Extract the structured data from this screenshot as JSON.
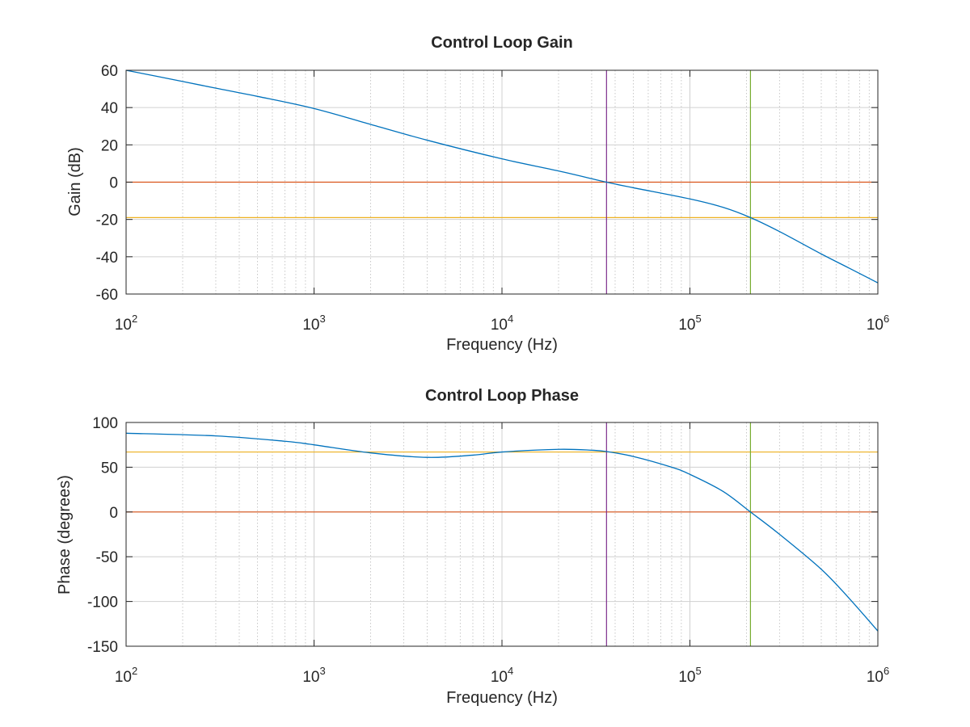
{
  "chart_data": [
    {
      "type": "line",
      "title": "Control Loop Gain",
      "xlabel": "Frequency (Hz)",
      "ylabel": "Gain (dB)",
      "xscale": "log",
      "xlim": [
        100,
        1000000
      ],
      "ylim": [
        -60,
        60
      ],
      "grid": true,
      "x_ticks": [
        {
          "base": "10",
          "exp": "2"
        },
        {
          "base": "10",
          "exp": "3"
        },
        {
          "base": "10",
          "exp": "4"
        },
        {
          "base": "10",
          "exp": "5"
        },
        {
          "base": "10",
          "exp": "6"
        }
      ],
      "y_ticks": [
        "60",
        "40",
        "20",
        "0",
        "-20",
        "-40",
        "-60"
      ],
      "series": [
        {
          "color": "#0072bd",
          "x": [
            100,
            200,
            300,
            500,
            1000,
            2000,
            4000,
            10000,
            20000,
            36000,
            50000,
            100000,
            150000,
            210000,
            300000,
            500000,
            700000,
            1000000
          ],
          "y": [
            60,
            54,
            50.4,
            46,
            39.5,
            31,
            22.5,
            12.5,
            6,
            0,
            -3,
            -9,
            -13.5,
            -19,
            -26.5,
            -38.5,
            -46,
            -54
          ]
        }
      ],
      "hlines": [
        {
          "y": 0,
          "color": "#d95319"
        },
        {
          "y": -19,
          "color": "#edb120"
        }
      ],
      "vlines": [
        {
          "x": 36000,
          "color": "#7e2f8e"
        },
        {
          "x": 210000,
          "color": "#77ac30"
        }
      ]
    },
    {
      "type": "line",
      "title": "Control Loop Phase",
      "xlabel": "Frequency (Hz)",
      "ylabel": "Phase (degrees)",
      "xscale": "log",
      "xlim": [
        100,
        1000000
      ],
      "ylim": [
        -150,
        100
      ],
      "grid": true,
      "x_ticks": [
        {
          "base": "10",
          "exp": "2"
        },
        {
          "base": "10",
          "exp": "3"
        },
        {
          "base": "10",
          "exp": "4"
        },
        {
          "base": "10",
          "exp": "5"
        },
        {
          "base": "10",
          "exp": "6"
        }
      ],
      "y_ticks": [
        "100",
        "50",
        "0",
        "-50",
        "-100",
        "-150"
      ],
      "series": [
        {
          "color": "#0072bd",
          "x": [
            100,
            300,
            700,
            1000,
            2000,
            4000,
            7000,
            10000,
            20000,
            30000,
            36000,
            50000,
            80000,
            100000,
            150000,
            210000,
            300000,
            500000,
            700000,
            1000000
          ],
          "y": [
            88,
            85,
            79,
            75,
            66,
            61,
            63.5,
            67,
            70,
            69,
            67.5,
            62,
            50,
            42,
            23,
            0,
            -25,
            -64,
            -96,
            -133
          ]
        }
      ],
      "hlines": [
        {
          "y": 0,
          "color": "#d95319"
        },
        {
          "y": 67,
          "color": "#edb120"
        }
      ],
      "vlines": [
        {
          "x": 36000,
          "color": "#7e2f8e"
        },
        {
          "x": 210000,
          "color": "#77ac30"
        }
      ]
    }
  ]
}
